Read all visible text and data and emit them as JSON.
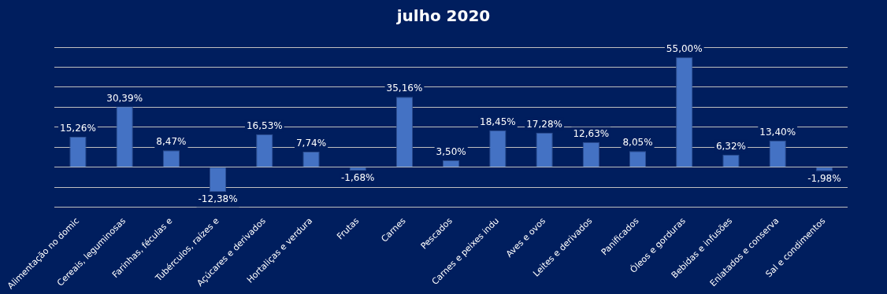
{
  "chart_data": {
    "type": "bar",
    "title": "julho 2020",
    "categories": [
      "Alimentação no domic",
      "Cereais, leguminosas",
      "Farinhas, féculas e",
      "Tubérculos, raízes e",
      "Açúcares e derivados",
      "Hortaliças e verdura",
      "Frutas",
      "Carnes",
      "Pescados",
      "Carnes e peixes indu",
      "Aves e ovos",
      "Leites e derivados",
      "Panificados",
      "Óleos e gorduras",
      "Bebidas e infusões",
      "Enlatados e conserva",
      "Sal e condimentos"
    ],
    "values": [
      15.26,
      30.39,
      8.47,
      -12.38,
      16.53,
      7.74,
      -1.68,
      35.16,
      3.5,
      18.45,
      17.28,
      12.63,
      8.05,
      55,
      6.32,
      13.4,
      -1.98
    ],
    "value_labels": [
      "15,26%",
      "30,39%",
      "8,47%",
      "-12,38%",
      "16,53%",
      "7,74%",
      "-1,68%",
      "35,16%",
      "3,50%",
      "18,45%",
      "17,28%",
      "12,63%",
      "8,05%",
      "55,00%",
      "6,32%",
      "13,40%",
      "-1,98%"
    ],
    "color": "#4472c4",
    "tick_labels": "x",
    "grid": "y"
  }
}
